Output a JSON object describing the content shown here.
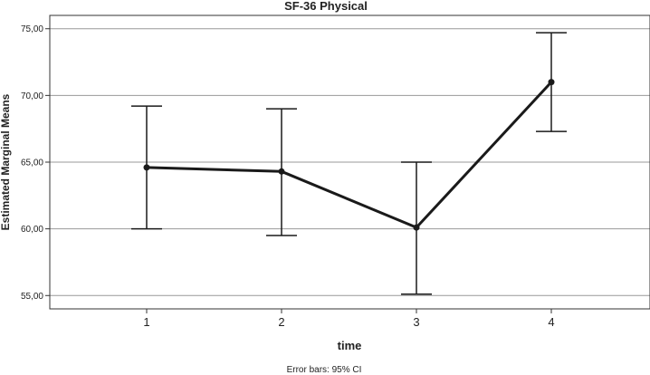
{
  "chart_data": {
    "type": "line",
    "title": "SF-36 Physical",
    "xlabel": "time",
    "ylabel": "Estimated Marginal Means",
    "categories": [
      "1",
      "2",
      "3",
      "4"
    ],
    "series": [
      {
        "values": [
          64.6,
          64.3,
          60.1,
          71.0
        ],
        "ci_lower": [
          60.0,
          59.5,
          55.1,
          67.3
        ],
        "ci_upper": [
          69.2,
          69.0,
          65.0,
          74.7
        ]
      }
    ],
    "ylim": [
      54.0,
      76.0
    ],
    "yticks": [
      "55,00",
      "60,00",
      "65,00",
      "70,00",
      "75,00"
    ],
    "ytick_values": [
      55,
      60,
      65,
      70,
      75
    ],
    "grid": true,
    "footnote": "Error bars: 95% CI",
    "colors": {
      "line": "#1a1a1a",
      "grid": "#999999",
      "axis": "#333333"
    }
  }
}
